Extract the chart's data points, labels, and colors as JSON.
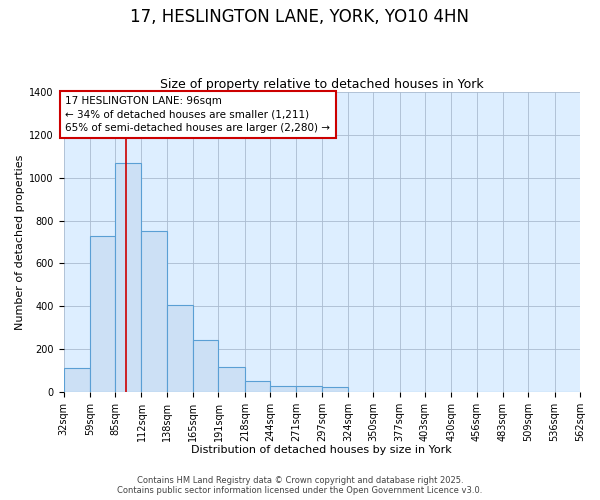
{
  "title": "17, HESLINGTON LANE, YORK, YO10 4HN",
  "subtitle": "Size of property relative to detached houses in York",
  "xlabel": "Distribution of detached houses by size in York",
  "ylabel": "Number of detached properties",
  "bin_edges": [
    32,
    59,
    85,
    112,
    138,
    165,
    191,
    218,
    244,
    271,
    297,
    324,
    350,
    377,
    403,
    430,
    456,
    483,
    509,
    536,
    562
  ],
  "bar_heights": [
    110,
    730,
    1070,
    750,
    405,
    240,
    115,
    50,
    25,
    25,
    20,
    0,
    0,
    0,
    0,
    0,
    0,
    0,
    0,
    0
  ],
  "bar_color": "#cce0f5",
  "bar_edge_color": "#5a9fd4",
  "fig_background_color": "#ffffff",
  "plot_background_color": "#ddeeff",
  "grid_color": "#aabbd0",
  "property_line_x": 96,
  "property_line_color": "#cc0000",
  "annotation_line1": "17 HESLINGTON LANE: 96sqm",
  "annotation_line2": "← 34% of detached houses are smaller (1,211)",
  "annotation_line3": "65% of semi-detached houses are larger (2,280) →",
  "annotation_box_color": "#cc0000",
  "ylim": [
    0,
    1400
  ],
  "yticks": [
    0,
    200,
    400,
    600,
    800,
    1000,
    1200,
    1400
  ],
  "footer_line1": "Contains HM Land Registry data © Crown copyright and database right 2025.",
  "footer_line2": "Contains public sector information licensed under the Open Government Licence v3.0.",
  "title_fontsize": 12,
  "subtitle_fontsize": 9,
  "axis_label_fontsize": 8,
  "tick_fontsize": 7,
  "annotation_fontsize": 7.5,
  "footer_fontsize": 6
}
